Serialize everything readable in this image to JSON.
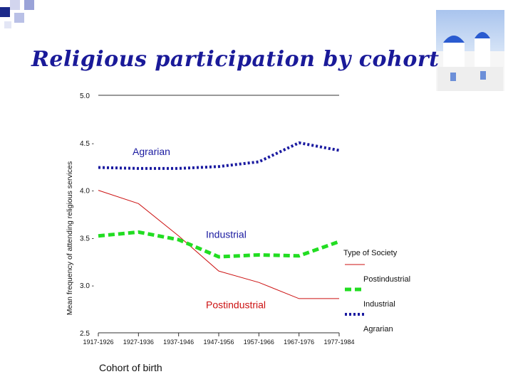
{
  "slide_title": "Religious participation by cohort",
  "colors": {
    "title": "#1a1a99",
    "agrarian": "#1a1aa0",
    "industrial": "#22dd22",
    "postindustrial": "#cc1111"
  },
  "chart_data": {
    "type": "line",
    "title": "",
    "xlabel": "Cohort of birth",
    "ylabel": "Mean frequency of attending religious services",
    "ylim": [
      2.5,
      5.0
    ],
    "yticks": [
      "5.0",
      "4.5 -",
      "4.0 -",
      "3.5 -",
      "3.0 -",
      "2.5"
    ],
    "ytick_values": [
      5.0,
      4.5,
      4.0,
      3.5,
      3.0,
      2.5
    ],
    "categories": [
      "1917-1926",
      "1927-1936",
      "1937-1946",
      "1947-1956",
      "1957-1966",
      "1967-1976",
      "1977-1984"
    ],
    "series": [
      {
        "name": "Postindustrial",
        "key": "postindustrial",
        "style": "thin",
        "values": [
          4.0,
          3.86,
          3.52,
          3.15,
          3.03,
          2.86,
          2.86
        ]
      },
      {
        "name": "Industrial",
        "key": "industrial",
        "style": "dashed-green",
        "values": [
          3.52,
          3.56,
          3.48,
          3.3,
          3.32,
          3.31,
          3.46
        ]
      },
      {
        "name": "Agrarian",
        "key": "agrarian",
        "style": "dotted-blue",
        "values": [
          4.24,
          4.23,
          4.23,
          4.25,
          4.3,
          4.5,
          4.42
        ]
      }
    ],
    "annotations": {
      "agrarian": "Agrarian",
      "industrial": "Industrial",
      "postindustrial": "Postindustrial"
    },
    "legend": {
      "title": "Type of Society",
      "placement": "right",
      "items": [
        "Postindustrial",
        "Industrial",
        "Agrarian"
      ]
    }
  }
}
